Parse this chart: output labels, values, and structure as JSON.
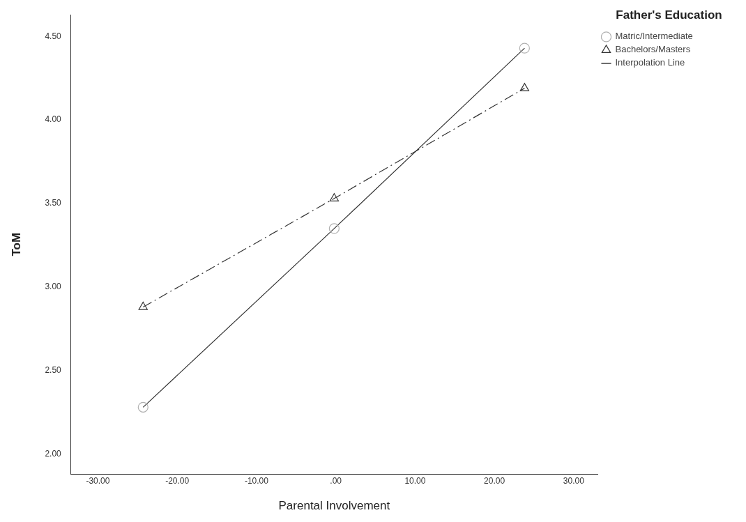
{
  "chart_data": {
    "type": "line",
    "xlabel": "Parental Involvement",
    "ylabel": "ToM",
    "legend_title": "Father's Education",
    "legend": "top right",
    "grid": false,
    "xlim": [
      -33.4,
      33.0
    ],
    "xticks": [
      {
        "value": -30,
        "label": "-30.00"
      },
      {
        "value": -20,
        "label": "-20.00"
      },
      {
        "value": -10,
        "label": "-10.00"
      },
      {
        "value": 0,
        "label": ".00"
      },
      {
        "value": 10,
        "label": "10.00"
      },
      {
        "value": 20,
        "label": "20.00"
      },
      {
        "value": 30,
        "label": "30.00"
      }
    ],
    "ylim": [
      1.88,
      4.63
    ],
    "yticks": [
      {
        "value": 2,
        "label": "2.00"
      },
      {
        "value": 2.5,
        "label": "2.50"
      },
      {
        "value": 3,
        "label": "3.00"
      },
      {
        "value": 3.5,
        "label": "3.50"
      },
      {
        "value": 4,
        "label": "4.00"
      },
      {
        "value": 4.5,
        "label": "4.50"
      }
    ],
    "series": [
      {
        "name": "Matric/Intermediate",
        "color": "#333333",
        "marker": "circle",
        "line_style": "solid",
        "x": [
          -24.3,
          -0.2,
          23.8
        ],
        "values": [
          2.28,
          3.35,
          4.43
        ]
      },
      {
        "name": "Bachelors/Masters",
        "color": "#333333",
        "marker": "triangle",
        "line_style": "dashed",
        "x": [
          -24.3,
          -0.2,
          23.8
        ],
        "values": [
          2.88,
          3.53,
          4.19
        ]
      }
    ],
    "annotations": [
      "Interpolation Line"
    ]
  }
}
